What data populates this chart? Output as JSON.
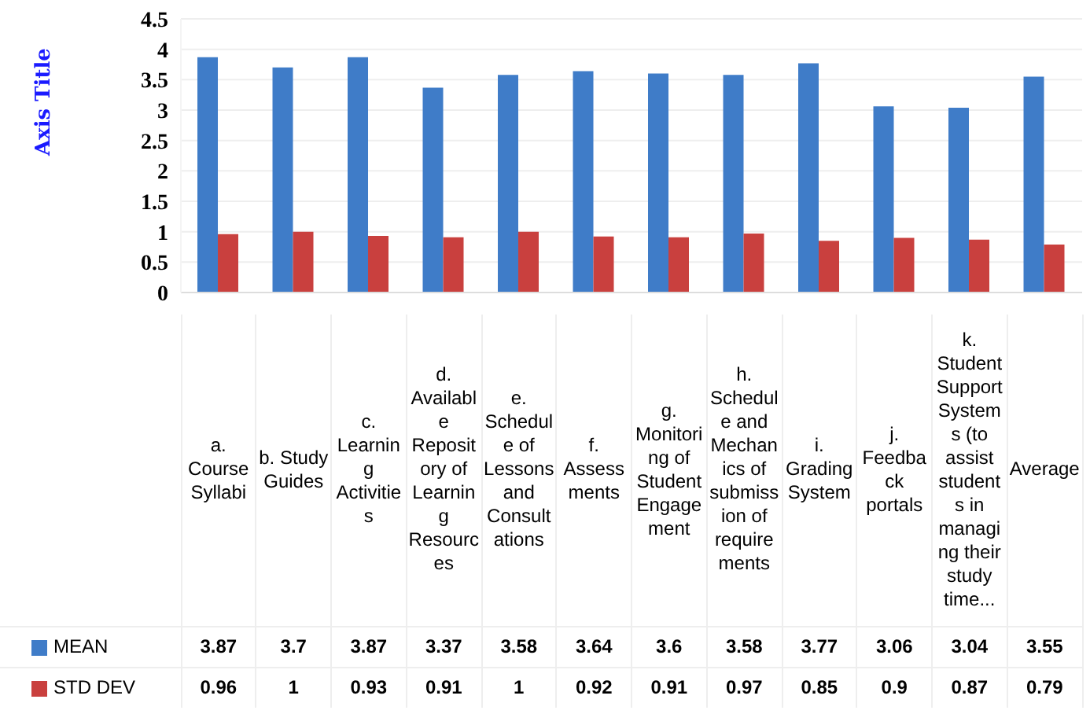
{
  "chart_data": {
    "type": "bar",
    "ylabel": "Axis Title",
    "categories": [
      "a. Course Syllabi",
      "b. Study Guides",
      "c. Learning Activities",
      "d. Available Repository of Learning Resources",
      "e. Schedule of Lessons and Consultations",
      "f. Assessments",
      "g. Monitoring of Student Engagement",
      "h. Schedule and Mechanics of submission of requirements",
      "i. Grading System",
      "j. Feedback portals",
      "k. Student Support Systems (to assist students in managing their study time...",
      "Average"
    ],
    "series": [
      {
        "name": "MEAN",
        "color": "#3f7cc8",
        "values": [
          3.87,
          3.7,
          3.87,
          3.37,
          3.58,
          3.64,
          3.6,
          3.58,
          3.77,
          3.06,
          3.04,
          3.55
        ]
      },
      {
        "name": "STD DEV",
        "color": "#c9403e",
        "values": [
          0.96,
          1,
          0.93,
          0.91,
          1,
          0.92,
          0.91,
          0.97,
          0.85,
          0.9,
          0.87,
          0.79
        ]
      }
    ],
    "ylim": [
      0,
      4.5
    ],
    "yticks": [
      0,
      0.5,
      1,
      1.5,
      2,
      2.5,
      3,
      3.5,
      4,
      4.5
    ],
    "grid": "y",
    "legend": "bottom",
    "data_labels": true
  }
}
